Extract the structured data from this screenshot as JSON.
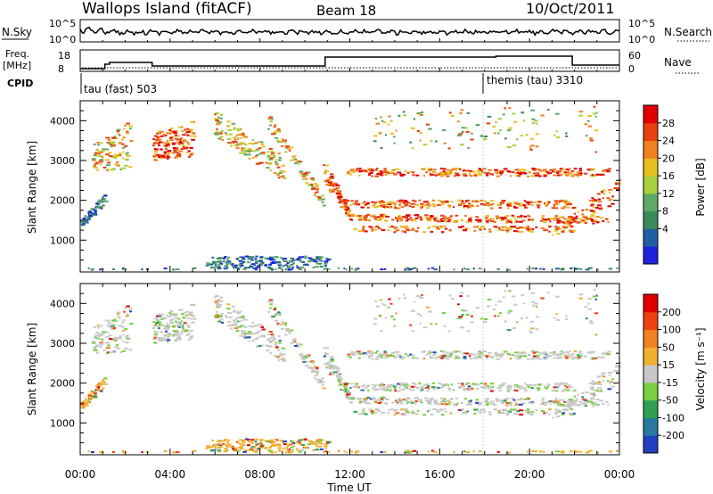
{
  "header": {
    "station": "Wallops Island (fitACF)",
    "beam": "Beam 18",
    "date": "10/Oct/2011"
  },
  "summary": {
    "nsky_label": "N.Sky",
    "nsearch_label": "N.Search",
    "freq_label": "Freq.",
    "freq_unit": "[MHz]",
    "nave_label": "Nave",
    "cpid_label": "CPID",
    "noise_ticks": [
      "10^5",
      "10^0"
    ],
    "freq_ticks": [
      "18",
      "8"
    ],
    "nave_ticks": [
      "60",
      "0"
    ],
    "cpid_segments": [
      {
        "label": "tau (fast) 503",
        "start_hour": 0.0
      },
      {
        "label": "themis (tau) 3310",
        "start_hour": 18.0
      }
    ]
  },
  "chart_data": [
    {
      "type": "heatmap",
      "name": "power",
      "ylabel": "Slant Range [km]",
      "ylim": [
        200,
        4500
      ],
      "xlim": [
        0,
        24
      ],
      "y_ticks": [
        1000,
        2000,
        3000,
        4000
      ],
      "colorbar": {
        "label": "Power [dB]",
        "ticks": [
          "28",
          "24",
          "20",
          "16",
          "12",
          "8",
          "4"
        ],
        "colors": [
          "#2020e0",
          "#2060a0",
          "#3a8a5a",
          "#60a868",
          "#a8d040",
          "#e8c020",
          "#f08020",
          "#e84010",
          "#e00000"
        ]
      }
    },
    {
      "type": "heatmap",
      "name": "velocity",
      "ylabel": "Slant Range [km]",
      "ylim": [
        200,
        4500
      ],
      "xlim": [
        0,
        24
      ],
      "y_ticks": [
        1000,
        2000,
        3000,
        4000
      ],
      "colorbar": {
        "label": "Velocity [m s⁻¹]",
        "ticks": [
          "200",
          "100",
          "50",
          "15",
          "-15",
          "-50",
          "-100",
          "-200"
        ],
        "colors": [
          "#2040c0",
          "#2878a0",
          "#30a050",
          "#78d040",
          "#c8c8c8",
          "#f0b030",
          "#f08020",
          "#f04010",
          "#e00000"
        ]
      }
    }
  ],
  "xaxis": {
    "label": "Time UT",
    "ticks": [
      "00:00",
      "04:00",
      "08:00",
      "12:00",
      "16:00",
      "20:00",
      "00:00"
    ]
  }
}
